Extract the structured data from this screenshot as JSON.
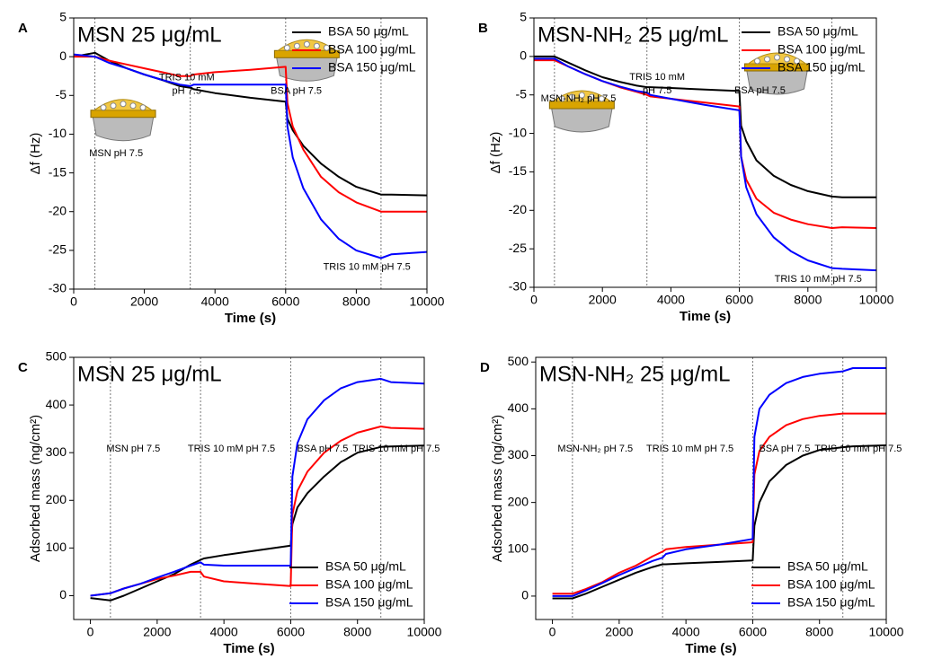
{
  "chart_data": [
    {
      "type": "line",
      "panel": "A",
      "title": "MSN 25 μg/mL",
      "x_label": "Time (s)",
      "y_label": "Δf (Hz)",
      "x": [
        0,
        600,
        1000,
        1500,
        2000,
        2500,
        3000,
        3300,
        3400,
        4000,
        5000,
        6000,
        6050,
        6200,
        6500,
        7000,
        7500,
        8000,
        8700,
        9000,
        10000
      ],
      "series": [
        {
          "name": "BSA 50 μg/mL",
          "color": "#000000",
          "values": [
            0,
            0.5,
            -0.5,
            -1.5,
            -2.3,
            -3,
            -3.8,
            -4,
            -4.2,
            -4.7,
            -5.3,
            -5.8,
            -8,
            -9.5,
            -11.5,
            -13.8,
            -15.5,
            -16.8,
            -17.8,
            -17.8,
            -17.9
          ]
        },
        {
          "name": "BSA 100 μg/mL",
          "color": "#ff0000",
          "values": [
            0,
            0,
            -0.5,
            -1,
            -1.5,
            -2,
            -2.5,
            -2.5,
            -2.3,
            -2,
            -1.7,
            -1.3,
            -6,
            -9,
            -12,
            -15.5,
            -17.5,
            -18.8,
            -20,
            -20,
            -20
          ]
        },
        {
          "name": "BSA 150 μg/mL",
          "color": "#0000ff",
          "values": [
            0.3,
            0,
            -0.8,
            -1.5,
            -2.3,
            -3,
            -3.6,
            -3.8,
            -3.6,
            -3.6,
            -3.6,
            -3.6,
            -9,
            -13,
            -17,
            -21,
            -23.5,
            -25,
            -26,
            -25.5,
            -25.2
          ]
        }
      ],
      "xlim": [
        0,
        10000
      ],
      "xticks": [
        0,
        2000,
        4000,
        6000,
        8000,
        10000
      ],
      "ylim": [
        -30,
        5
      ],
      "yticks": [
        -30,
        -25,
        -20,
        -15,
        -10,
        -5,
        0,
        5
      ],
      "vlines": [
        600,
        3300,
        6000,
        8700
      ],
      "legend": "upper right",
      "annotations": [
        "MSN pH 7.5",
        "TRIS 10 mM",
        "pH 7.5",
        "BSA pH 7.5",
        "TRIS 10 mM pH 7.5"
      ]
    },
    {
      "type": "line",
      "panel": "B",
      "title": "MSN-NH₂ 25 μg/mL",
      "x_label": "Time (s)",
      "y_label": "Δf (Hz)",
      "x": [
        0,
        600,
        1000,
        1500,
        2000,
        2500,
        3000,
        3300,
        3400,
        4000,
        5000,
        6000,
        6050,
        6200,
        6500,
        7000,
        7500,
        8000,
        8700,
        9000,
        10000
      ],
      "series": [
        {
          "name": "BSA 50 μg/mL",
          "color": "#000000",
          "values": [
            0,
            0,
            -0.8,
            -1.8,
            -2.7,
            -3.3,
            -3.8,
            -4,
            -4,
            -4.1,
            -4.3,
            -4.5,
            -9,
            -11,
            -13.5,
            -15.5,
            -16.7,
            -17.5,
            -18.2,
            -18.3,
            -18.3
          ]
        },
        {
          "name": "BSA 100 μg/mL",
          "color": "#ff0000",
          "values": [
            -0.5,
            -0.5,
            -1.3,
            -2.3,
            -3.2,
            -4,
            -4.6,
            -5,
            -5.2,
            -5.5,
            -6,
            -6.5,
            -13,
            -16,
            -18.5,
            -20.3,
            -21.2,
            -21.8,
            -22.3,
            -22.2,
            -22.3
          ]
        },
        {
          "name": "BSA 150 μg/mL",
          "color": "#0000ff",
          "values": [
            -0.3,
            -0.3,
            -1.3,
            -2.3,
            -3.2,
            -3.9,
            -4.5,
            -4.7,
            -5,
            -5.5,
            -6.3,
            -7,
            -13,
            -17,
            -20.5,
            -23.5,
            -25.3,
            -26.5,
            -27.5,
            -27.6,
            -27.8
          ]
        }
      ],
      "xlim": [
        0,
        10000
      ],
      "xticks": [
        0,
        2000,
        4000,
        6000,
        8000,
        10000
      ],
      "ylim": [
        -30,
        5
      ],
      "yticks": [
        -30,
        -25,
        -20,
        -15,
        -10,
        -5,
        0,
        5
      ],
      "vlines": [
        600,
        3300,
        6000,
        8700
      ],
      "legend": "upper right",
      "annotations": [
        "MSN-NH₂ pH 7.5",
        "TRIS 10 mM",
        "pH 7.5",
        "BSA pH 7.5",
        "TRIS 10 mM pH 7.5"
      ]
    },
    {
      "type": "line",
      "panel": "C",
      "title": "MSN 25 μg/mL",
      "x_label": "Time (s)",
      "y_label": "Adsorbed mass (ng/cm²)",
      "x": [
        0,
        600,
        1000,
        1500,
        2000,
        2500,
        3000,
        3300,
        3400,
        4000,
        5000,
        6000,
        6050,
        6200,
        6500,
        7000,
        7500,
        8000,
        8700,
        9000,
        10000
      ],
      "series": [
        {
          "name": "BSA 50 μg/mL",
          "color": "#000000",
          "values": [
            -5,
            -10,
            0,
            15,
            30,
            45,
            65,
            75,
            78,
            85,
            95,
            105,
            150,
            185,
            215,
            250,
            280,
            300,
            312,
            313,
            315
          ]
        },
        {
          "name": "BSA 100 μg/mL",
          "color": "#ff0000",
          "values": [
            0,
            5,
            15,
            25,
            35,
            42,
            50,
            50,
            40,
            30,
            25,
            20,
            170,
            220,
            260,
            300,
            325,
            342,
            355,
            352,
            350
          ]
        },
        {
          "name": "BSA 150 μg/mL",
          "color": "#0000ff",
          "values": [
            0,
            5,
            15,
            25,
            38,
            50,
            63,
            70,
            65,
            63,
            63,
            63,
            250,
            320,
            370,
            410,
            435,
            448,
            455,
            448,
            445
          ]
        }
      ],
      "xlim": [
        -500,
        10000
      ],
      "xticks": [
        0,
        2000,
        4000,
        6000,
        8000,
        10000
      ],
      "ylim": [
        -50,
        500
      ],
      "yticks": [
        0,
        100,
        200,
        300,
        400,
        500
      ],
      "vlines": [
        600,
        3300,
        6000,
        8700
      ],
      "legend": "lower right",
      "annotations": [
        "MSN pH 7.5",
        "TRIS 10 mM pH 7.5",
        "BSA pH 7.5",
        "TRIS 10 mM pH 7.5"
      ]
    },
    {
      "type": "line",
      "panel": "D",
      "title": "MSN-NH₂ 25 μg/mL",
      "x_label": "Time (s)",
      "y_label": "Adsorbed mass (ng/cm²)",
      "x": [
        0,
        600,
        1000,
        1500,
        2000,
        2500,
        3000,
        3300,
        3400,
        4000,
        5000,
        6000,
        6050,
        6200,
        6500,
        7000,
        7500,
        8000,
        8700,
        9000,
        10000
      ],
      "series": [
        {
          "name": "BSA 50 μg/mL",
          "color": "#000000",
          "values": [
            -5,
            -5,
            5,
            20,
            35,
            50,
            62,
            68,
            68,
            70,
            73,
            76,
            150,
            200,
            245,
            280,
            300,
            312,
            318,
            320,
            322
          ]
        },
        {
          "name": "BSA 100 μg/mL",
          "color": "#ff0000",
          "values": [
            5,
            5,
            15,
            30,
            50,
            65,
            85,
            95,
            100,
            105,
            110,
            115,
            260,
            310,
            340,
            365,
            378,
            385,
            390,
            390,
            390
          ]
        },
        {
          "name": "BSA 150 μg/mL",
          "color": "#0000ff",
          "values": [
            0,
            0,
            12,
            28,
            45,
            60,
            75,
            82,
            90,
            100,
            110,
            122,
            340,
            400,
            430,
            455,
            468,
            475,
            480,
            487,
            487
          ]
        }
      ],
      "xlim": [
        -500,
        10000
      ],
      "xticks": [
        0,
        2000,
        4000,
        6000,
        8000,
        10000
      ],
      "ylim": [
        -50,
        510
      ],
      "yticks": [
        0,
        100,
        200,
        300,
        400,
        500
      ],
      "vlines": [
        600,
        3300,
        6000,
        8700
      ],
      "legend": "lower right",
      "annotations": [
        "MSN-NH₂ pH 7.5",
        "TRIS 10 mM pH 7.5",
        "BSA pH 7.5",
        "TRIS 10 mM pH 7.5"
      ]
    }
  ]
}
